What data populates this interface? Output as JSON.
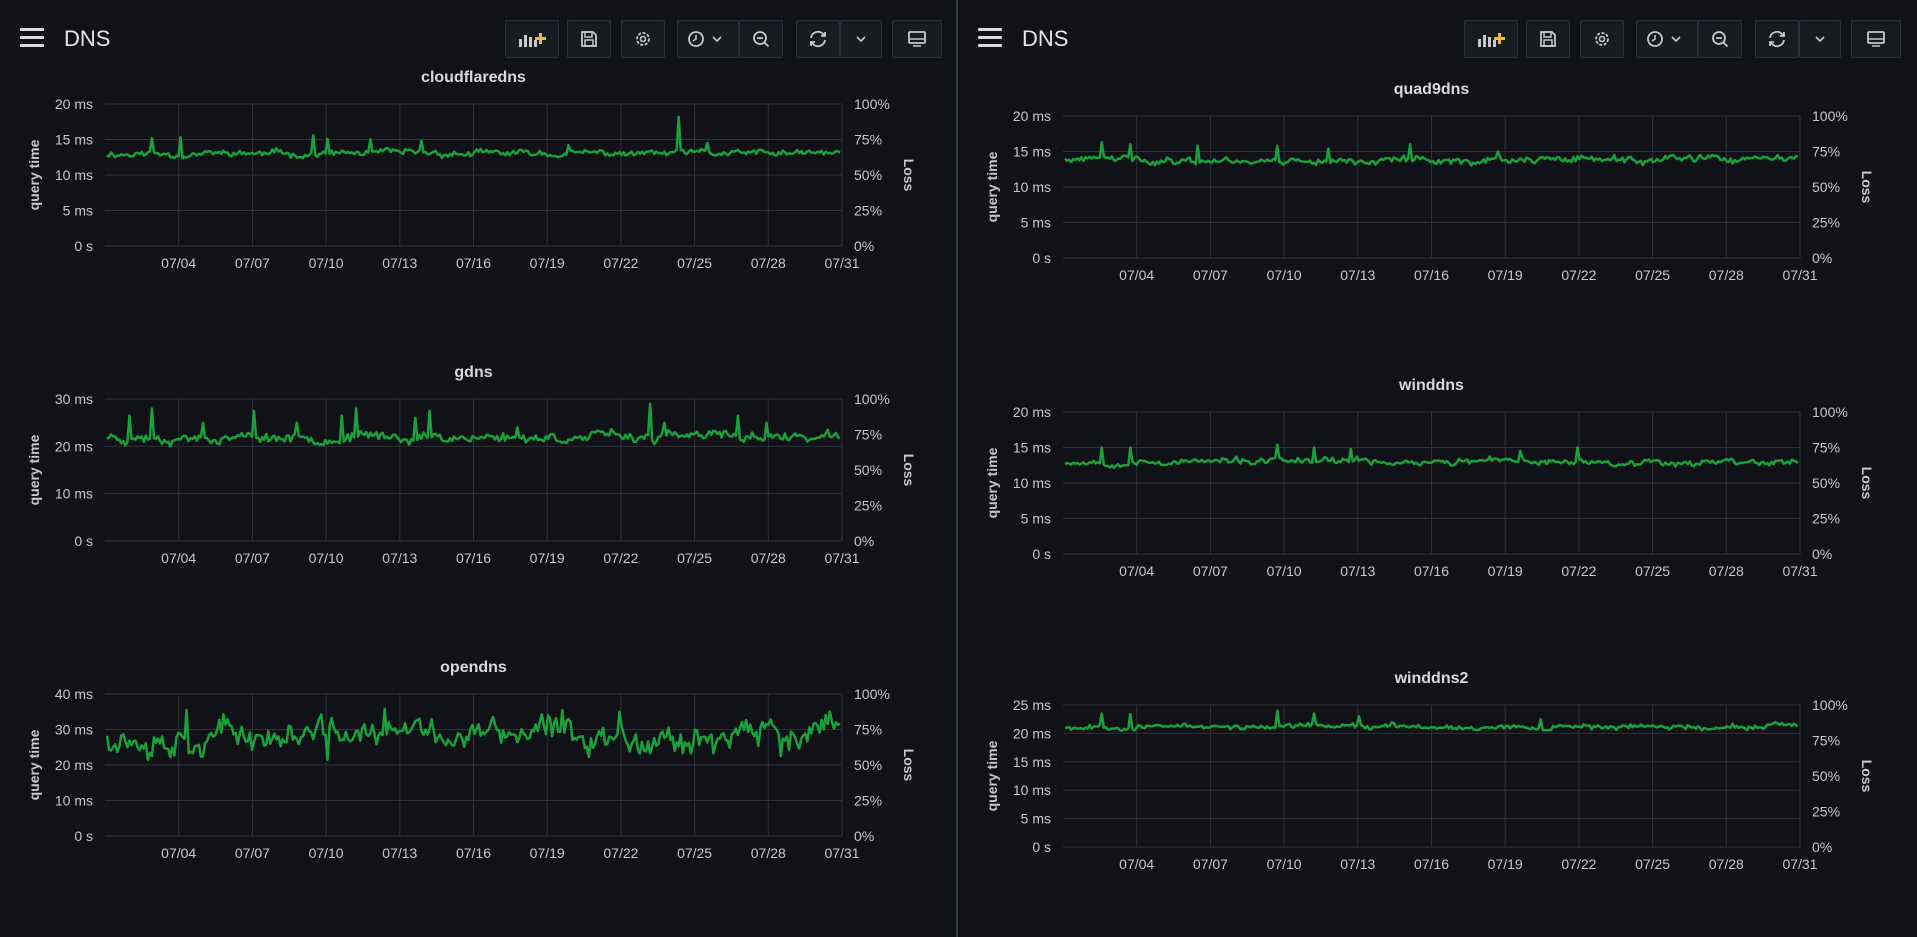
{
  "colors": {
    "background": "#111217",
    "series": "#1aa03c",
    "grid": "#2f3137",
    "accent": "#f5b73b"
  },
  "left_pane": {
    "dashboard_title": "DNS",
    "toolbar": [
      "add-panel-icon",
      "save-icon",
      "gear-icon",
      "clock-icon",
      "chevron-down-icon",
      "zoom-out-icon",
      "refresh-icon",
      "chevron-down-icon",
      "tv-mode-icon"
    ]
  },
  "right_pane": {
    "dashboard_title": "DNS",
    "toolbar": [
      "add-panel-icon",
      "save-icon",
      "gear-icon",
      "clock-icon",
      "chevron-down-icon",
      "zoom-out-icon",
      "refresh-icon",
      "chevron-down-icon",
      "tv-mode-icon"
    ]
  },
  "chart_data": [
    {
      "type": "line",
      "title": "cloudflaredns",
      "ylabel": "query time",
      "y2label": "Loss",
      "ylim": [
        0,
        20
      ],
      "yticks": [
        "0 s",
        "5 ms",
        "10 ms",
        "15 ms",
        "20 ms"
      ],
      "y2ticks": [
        "0%",
        "25%",
        "50%",
        "75%",
        "100%"
      ],
      "xticks": [
        "07/04",
        "07/07",
        "07/10",
        "07/13",
        "07/16",
        "07/19",
        "07/22",
        "07/25",
        "07/28",
        "07/31"
      ],
      "grid": true,
      "baseline": 13,
      "noise": 0.7,
      "seed": 11,
      "spikes": [
        [
          0.06,
          15.2
        ],
        [
          0.1,
          15.3
        ],
        [
          0.28,
          15.6
        ],
        [
          0.3,
          15.1
        ],
        [
          0.36,
          15.0
        ],
        [
          0.43,
          14.8
        ],
        [
          0.63,
          14.2
        ],
        [
          0.78,
          18.2
        ],
        [
          0.82,
          14.5
        ]
      ],
      "series": [
        {
          "name": ""
        }
      ]
    },
    {
      "type": "line",
      "title": "gdns",
      "ylabel": "query time",
      "y2label": "Loss",
      "ylim": [
        0,
        30
      ],
      "yticks": [
        "0 s",
        "10 ms",
        "20 ms",
        "30 ms"
      ],
      "y2ticks": [
        "0%",
        "25%",
        "50%",
        "75%",
        "100%"
      ],
      "xticks": [
        "07/04",
        "07/07",
        "07/10",
        "07/13",
        "07/16",
        "07/19",
        "07/22",
        "07/25",
        "07/28",
        "07/31"
      ],
      "grid": true,
      "baseline": 22,
      "noise": 1.6,
      "seed": 23,
      "spikes": [
        [
          0.03,
          26.5
        ],
        [
          0.06,
          28
        ],
        [
          0.13,
          25
        ],
        [
          0.2,
          27.5
        ],
        [
          0.26,
          25
        ],
        [
          0.32,
          26.5
        ],
        [
          0.34,
          28
        ],
        [
          0.42,
          26
        ],
        [
          0.44,
          27.5
        ],
        [
          0.56,
          24
        ],
        [
          0.74,
          29
        ],
        [
          0.76,
          25
        ],
        [
          0.86,
          26.5
        ],
        [
          0.9,
          25
        ]
      ],
      "series": [
        {
          "name": ""
        }
      ]
    },
    {
      "type": "line",
      "title": "opendns",
      "ylabel": "query time",
      "y2label": "Loss",
      "ylim": [
        0,
        40
      ],
      "yticks": [
        "0 s",
        "10 ms",
        "20 ms",
        "30 ms",
        "40 ms"
      ],
      "y2ticks": [
        "0%",
        "25%",
        "50%",
        "75%",
        "100%"
      ],
      "xticks": [
        "07/04",
        "07/07",
        "07/10",
        "07/13",
        "07/16",
        "07/19",
        "07/22",
        "07/25",
        "07/28",
        "07/31"
      ],
      "grid": true,
      "baseline": 28.5,
      "noise": 6,
      "seed": 37,
      "spikes": [
        [
          0.11,
          35.5
        ],
        [
          0.38,
          35.8
        ],
        [
          0.62,
          35.5
        ],
        [
          0.7,
          35
        ],
        [
          0.3,
          21.5
        ],
        [
          0.92,
          22.5
        ]
      ],
      "series": [
        {
          "name": ""
        }
      ]
    },
    {
      "type": "line",
      "title": "quad9dns",
      "ylabel": "query time",
      "y2label": "Loss",
      "ylim": [
        0,
        20
      ],
      "yticks": [
        "0 s",
        "5 ms",
        "10 ms",
        "15 ms",
        "20 ms"
      ],
      "y2ticks": [
        "0%",
        "25%",
        "50%",
        "75%",
        "100%"
      ],
      "xticks": [
        "07/04",
        "07/07",
        "07/10",
        "07/13",
        "07/16",
        "07/19",
        "07/22",
        "07/25",
        "07/28",
        "07/31"
      ],
      "grid": true,
      "baseline": 13.8,
      "noise": 0.8,
      "seed": 41,
      "spikes": [
        [
          0.05,
          16.3
        ],
        [
          0.09,
          16
        ],
        [
          0.18,
          15.8
        ],
        [
          0.29,
          15.8
        ],
        [
          0.36,
          15.4
        ],
        [
          0.47,
          16
        ],
        [
          0.59,
          15
        ],
        [
          0.75,
          14.5
        ]
      ],
      "series": [
        {
          "name": ""
        }
      ]
    },
    {
      "type": "line",
      "title": "winddns",
      "ylabel": "query time",
      "y2label": "Loss",
      "ylim": [
        0,
        20
      ],
      "yticks": [
        "0 s",
        "5 ms",
        "10 ms",
        "15 ms",
        "20 ms"
      ],
      "y2ticks": [
        "0%",
        "25%",
        "50%",
        "75%",
        "100%"
      ],
      "xticks": [
        "07/04",
        "07/07",
        "07/10",
        "07/13",
        "07/16",
        "07/19",
        "07/22",
        "07/25",
        "07/28",
        "07/31"
      ],
      "grid": true,
      "baseline": 13,
      "noise": 0.7,
      "seed": 53,
      "spikes": [
        [
          0.05,
          15
        ],
        [
          0.09,
          15
        ],
        [
          0.29,
          15.4
        ],
        [
          0.34,
          15
        ],
        [
          0.39,
          14.8
        ],
        [
          0.62,
          14.5
        ],
        [
          0.7,
          15
        ]
      ],
      "series": [
        {
          "name": ""
        }
      ]
    },
    {
      "type": "line",
      "title": "winddns2",
      "ylabel": "query time",
      "y2label": "Loss",
      "ylim": [
        0,
        25
      ],
      "yticks": [
        "0 s",
        "5 ms",
        "10 ms",
        "15 ms",
        "20 ms",
        "25 ms"
      ],
      "y2ticks": [
        "0%",
        "25%",
        "50%",
        "75%",
        "100%"
      ],
      "xticks": [
        "07/04",
        "07/07",
        "07/10",
        "07/13",
        "07/16",
        "07/19",
        "07/22",
        "07/25",
        "07/28",
        "07/31"
      ],
      "grid": true,
      "baseline": 21.2,
      "noise": 0.7,
      "seed": 67,
      "spikes": [
        [
          0.05,
          23.5
        ],
        [
          0.09,
          23.4
        ],
        [
          0.29,
          24
        ],
        [
          0.34,
          23.5
        ],
        [
          0.4,
          23
        ],
        [
          0.65,
          22.5
        ]
      ],
      "series": [
        {
          "name": ""
        }
      ]
    }
  ]
}
